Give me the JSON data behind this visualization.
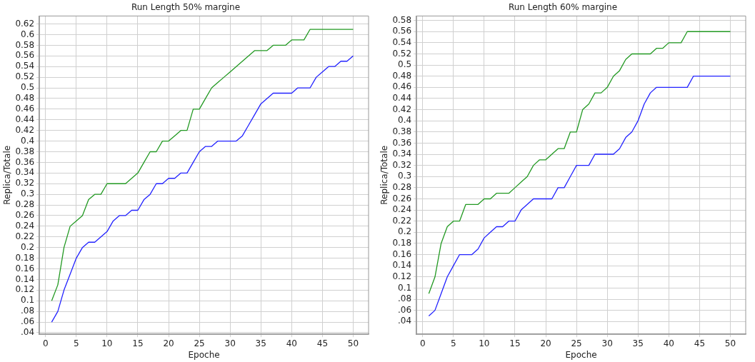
{
  "chart_data": [
    {
      "type": "line",
      "title": "Run Length 50% margine",
      "xlabel": "Epoche",
      "ylabel": "Replica/Totale",
      "grid": true,
      "x": [
        1,
        2,
        3,
        4,
        5,
        6,
        7,
        8,
        9,
        10,
        11,
        12,
        13,
        14,
        15,
        16,
        17,
        18,
        19,
        20,
        21,
        22,
        23,
        24,
        25,
        26,
        27,
        28,
        29,
        30,
        31,
        32,
        33,
        34,
        35,
        36,
        37,
        38,
        39,
        40,
        41,
        42,
        43,
        44,
        45,
        46,
        47,
        48,
        49,
        50
      ],
      "series": [
        {
          "color": "#229922",
          "values": [
            0.1,
            0.13,
            0.2,
            0.24,
            0.25,
            0.26,
            0.29,
            0.3,
            0.3,
            0.32,
            0.32,
            0.32,
            0.32,
            0.33,
            0.34,
            0.36,
            0.38,
            0.38,
            0.4,
            0.4,
            0.41,
            0.42,
            0.42,
            0.46,
            0.46,
            0.48,
            0.5,
            0.51,
            0.52,
            0.53,
            0.54,
            0.55,
            0.56,
            0.57,
            0.57,
            0.57,
            0.58,
            0.58,
            0.58,
            0.59,
            0.59,
            0.59,
            0.61,
            0.61,
            0.61,
            0.61,
            0.61,
            0.61,
            0.61,
            0.61
          ]
        },
        {
          "color": "#2222ff",
          "values": [
            0.06,
            0.08,
            0.12,
            0.15,
            0.18,
            0.2,
            0.21,
            0.21,
            0.22,
            0.23,
            0.25,
            0.26,
            0.26,
            0.27,
            0.27,
            0.29,
            0.3,
            0.32,
            0.32,
            0.33,
            0.33,
            0.34,
            0.34,
            0.36,
            0.38,
            0.39,
            0.39,
            0.4,
            0.4,
            0.4,
            0.4,
            0.41,
            0.43,
            0.45,
            0.47,
            0.48,
            0.49,
            0.49,
            0.49,
            0.49,
            0.5,
            0.5,
            0.5,
            0.52,
            0.53,
            0.54,
            0.54,
            0.55,
            0.55,
            0.56
          ]
        }
      ],
      "xlim": [
        -1,
        52.5
      ],
      "xticks": [
        0,
        5,
        10,
        15,
        20,
        25,
        30,
        35,
        40,
        45,
        50
      ],
      "ylim": [
        0.037,
        0.635
      ],
      "yticks": [
        {
          "value": 0.04,
          "label": ".04"
        },
        {
          "value": 0.06,
          "label": ".06"
        },
        {
          "value": 0.08,
          "label": ".08"
        },
        0.1,
        0.12,
        0.14,
        0.16,
        0.18,
        0.2,
        0.22,
        0.24,
        0.26,
        0.28,
        0.3,
        0.32,
        0.34,
        0.36,
        0.38,
        0.4,
        0.42,
        0.44,
        0.46,
        0.48,
        0.5,
        0.52,
        0.54,
        0.56,
        0.58,
        0.6,
        0.62
      ]
    },
    {
      "type": "line",
      "title": "Run Length 60% margine",
      "xlabel": "Epoche",
      "ylabel": "Replica/Totale",
      "grid": true,
      "x": [
        1,
        2,
        3,
        4,
        5,
        6,
        7,
        8,
        9,
        10,
        11,
        12,
        13,
        14,
        15,
        16,
        17,
        18,
        19,
        20,
        21,
        22,
        23,
        24,
        25,
        26,
        27,
        28,
        29,
        30,
        31,
        32,
        33,
        34,
        35,
        36,
        37,
        38,
        39,
        40,
        41,
        42,
        43,
        44,
        45,
        46,
        47,
        48,
        49,
        50
      ],
      "series": [
        {
          "color": "#229922",
          "values": [
            0.09,
            0.12,
            0.18,
            0.21,
            0.22,
            0.22,
            0.25,
            0.25,
            0.25,
            0.26,
            0.26,
            0.27,
            0.27,
            0.27,
            0.28,
            0.29,
            0.3,
            0.32,
            0.33,
            0.33,
            0.34,
            0.35,
            0.35,
            0.38,
            0.38,
            0.42,
            0.43,
            0.45,
            0.45,
            0.46,
            0.48,
            0.49,
            0.51,
            0.52,
            0.52,
            0.52,
            0.52,
            0.53,
            0.53,
            0.54,
            0.54,
            0.54,
            0.56,
            0.56,
            0.56,
            0.56,
            0.56,
            0.56,
            0.56,
            0.56
          ]
        },
        {
          "color": "#2222ff",
          "values": [
            0.05,
            0.06,
            0.09,
            0.12,
            0.14,
            0.16,
            0.16,
            0.16,
            0.17,
            0.19,
            0.2,
            0.21,
            0.21,
            0.22,
            0.22,
            0.24,
            0.25,
            0.26,
            0.26,
            0.26,
            0.26,
            0.28,
            0.28,
            0.3,
            0.32,
            0.32,
            0.32,
            0.34,
            0.34,
            0.34,
            0.34,
            0.35,
            0.37,
            0.38,
            0.4,
            0.43,
            0.45,
            0.46,
            0.46,
            0.46,
            0.46,
            0.46,
            0.46,
            0.48,
            0.48,
            0.48,
            0.48,
            0.48,
            0.48,
            0.48
          ]
        }
      ],
      "xlim": [
        -1,
        52.5
      ],
      "xticks": [
        0,
        5,
        10,
        15,
        20,
        25,
        30,
        35,
        40,
        45,
        50
      ],
      "ylim": [
        0.017,
        0.588
      ],
      "yticks": [
        {
          "value": 0.04,
          "label": ".04"
        },
        {
          "value": 0.06,
          "label": ".06"
        },
        {
          "value": 0.08,
          "label": ".08"
        },
        0.1,
        0.12,
        0.14,
        0.16,
        0.18,
        0.2,
        0.22,
        0.24,
        0.26,
        0.28,
        0.3,
        0.32,
        0.34,
        0.36,
        0.38,
        0.4,
        0.42,
        0.44,
        0.46,
        0.48,
        0.5,
        0.52,
        0.54,
        0.56,
        0.58
      ]
    }
  ]
}
